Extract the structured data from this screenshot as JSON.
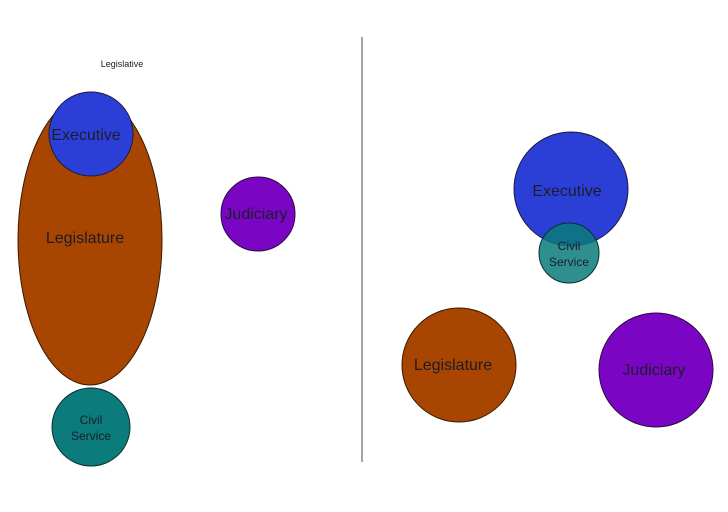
{
  "colors": {
    "executive": "#2b3fd6",
    "legislature": "#a84500",
    "judiciary": "#7a06c4",
    "civil_service": "#0b7b7b",
    "outline": "#2a2a2a",
    "divider": "#666666"
  },
  "left_panel": {
    "caption": "Legislative",
    "executive": "Executive",
    "legislature": "Legislature",
    "judiciary": "Judiciary",
    "civil_service_line1": "Civil",
    "civil_service_line2": "Service"
  },
  "right_panel": {
    "executive": "Executive",
    "legislature": "Legislature",
    "judiciary": "Judiciary",
    "civil_service_line1": "Civil",
    "civil_service_line2": "Service"
  }
}
